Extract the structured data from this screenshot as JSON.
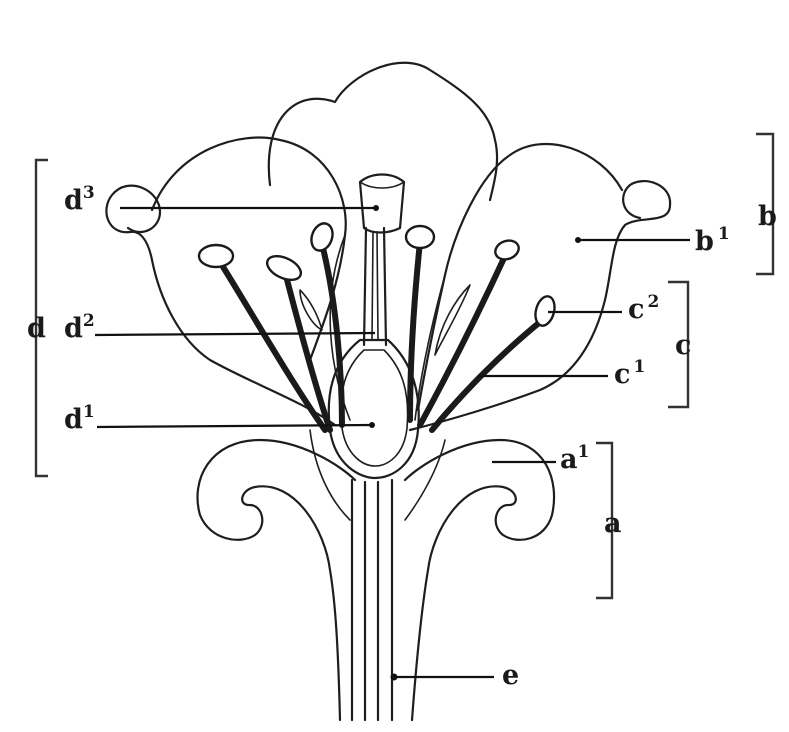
{
  "labels": {
    "a": "a",
    "a1": {
      "base": "a",
      "sup": "1"
    },
    "b": "b",
    "b1": {
      "base": "b",
      "sup": "1"
    },
    "c": "c",
    "c1": {
      "base": "c",
      "sup": "1"
    },
    "c2": {
      "base": "c",
      "sup": "2"
    },
    "d": "d",
    "d1": {
      "base": "d",
      "sup": "1"
    },
    "d2": {
      "base": "d",
      "sup": "2"
    },
    "d3": {
      "base": "d",
      "sup": "3"
    },
    "e": "e"
  }
}
